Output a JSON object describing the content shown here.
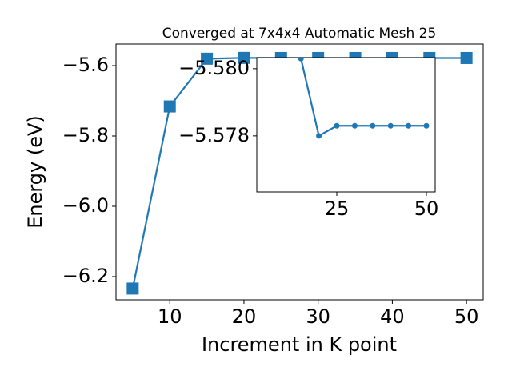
{
  "chart_data": {
    "type": "line",
    "title": "Converged at 7x4x4 Automatic Mesh 25",
    "xlabel": "Increment in K point",
    "ylabel": "Energy (eV)",
    "x": [
      5,
      10,
      15,
      20,
      25,
      30,
      35,
      40,
      45,
      50
    ],
    "series": [
      {
        "name": "Energy",
        "color": "#1f77b4",
        "values": [
          -6.234,
          -5.716,
          -5.5803,
          -5.578,
          -5.5783,
          -5.5783,
          -5.5783,
          -5.5783,
          -5.5783,
          -5.5783
        ]
      }
    ],
    "xlim": [
      2.75,
      52.25
    ],
    "ylim": [
      -6.266,
      -5.5386
    ],
    "xticks": [
      10,
      20,
      30,
      40,
      50
    ],
    "yticks": [
      {
        "value": -6.2,
        "label": "−6.2"
      },
      {
        "value": -6.0,
        "label": "−6.0"
      },
      {
        "value": -5.8,
        "label": "−5.8"
      },
      {
        "value": -5.6,
        "label": "−5.6"
      }
    ],
    "inset": {
      "xlim": [
        2.68,
        52.45
      ],
      "ylim": [
        -5.57633,
        -5.58033
      ],
      "xticks": [
        25,
        50
      ],
      "yticks": [
        {
          "value": -5.578,
          "label": "−5.578"
        },
        {
          "value": -5.58,
          "label": "−5.580"
        }
      ]
    }
  }
}
